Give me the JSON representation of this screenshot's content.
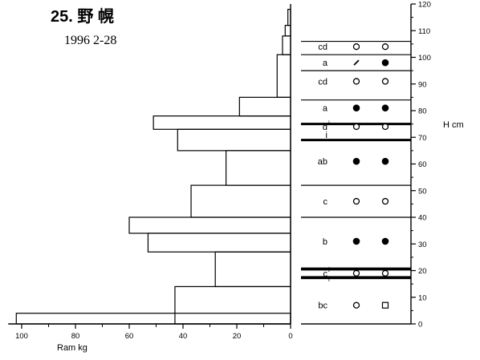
{
  "title": "25. 野 幌",
  "subtitle": "1996 2-28",
  "chart_data": [
    {
      "type": "bar",
      "orientation": "horizontal",
      "xlabel": "Ram kg",
      "xlim": [
        0,
        105
      ],
      "x_direction": "right-to-left",
      "xticks": [
        "100",
        "80",
        "60",
        "40",
        "20",
        "0"
      ],
      "ylabel": "H cm",
      "ylim": [
        0,
        120
      ],
      "bars": [
        {
          "from": 0,
          "to": 14,
          "value": 43
        },
        {
          "from": 14,
          "to": 27,
          "value": 28
        },
        {
          "from": 27,
          "to": 34,
          "value": 53
        },
        {
          "from": 34,
          "to": 40,
          "value": 60
        },
        {
          "from": 40,
          "to": 52,
          "value": 37
        },
        {
          "from": 52,
          "to": 65,
          "value": 24
        },
        {
          "from": 65,
          "to": 73,
          "value": 42
        },
        {
          "from": 73,
          "to": 78,
          "value": 51
        },
        {
          "from": 78,
          "to": 85,
          "value": 19
        },
        {
          "from": 85,
          "to": 101,
          "value": 5
        },
        {
          "from": 101,
          "to": 108,
          "value": 3
        },
        {
          "from": 108,
          "to": 112,
          "value": 2
        },
        {
          "from": 112,
          "to": 118,
          "value": 1
        },
        {
          "from": 118,
          "to": 120,
          "value": 0
        },
        {
          "from": 0,
          "to": 4,
          "value": 102
        }
      ]
    },
    {
      "type": "table",
      "yticks": [
        "0",
        "10",
        "20",
        "30",
        "40",
        "50",
        "60",
        "70",
        "80",
        "90",
        "100",
        "110",
        "120"
      ],
      "ylabel": "H cm",
      "layer_boundaries_cm": [
        0,
        17,
        21,
        40,
        52,
        69,
        75,
        84,
        95,
        101,
        106
      ],
      "ice_crusts_cm": [
        17.5,
        20.5,
        69,
        75
      ],
      "layers": [
        {
          "y": 7,
          "label": "bc",
          "sup": "",
          "sym1": "open-circle",
          "sym2": "open-square"
        },
        {
          "y": 19,
          "label": "c",
          "sup": "i",
          "sub": "i",
          "sym1": "open-circle",
          "sym2": "open-circle"
        },
        {
          "y": 31,
          "label": "b",
          "sup": "",
          "sym1": "filled-circle",
          "sym2": "filled-circle"
        },
        {
          "y": 46,
          "label": "c",
          "sup": "",
          "sym1": "open-circle",
          "sym2": "open-circle"
        },
        {
          "y": 61,
          "label": "ab",
          "sup": "",
          "sym1": "filled-circle",
          "sym2": "filled-circle"
        },
        {
          "y": 71,
          "label": "i",
          "sup": "",
          "sym1": "",
          "sym2": ""
        },
        {
          "y": 74,
          "label": "d",
          "sup": "i",
          "sym1": "open-circle",
          "sym2": "open-circle"
        },
        {
          "y": 81,
          "label": "a",
          "sup": "",
          "sym1": "filled-circle",
          "sym2": "filled-circle"
        },
        {
          "y": 91,
          "label": "cd",
          "sup": "",
          "sym1": "open-circle",
          "sym2": "open-circle"
        },
        {
          "y": 98,
          "label": "a",
          "sup": "",
          "sym1": "slash",
          "sym2": "filled-circle"
        },
        {
          "y": 104,
          "label": "cd",
          "sup": "",
          "sym1": "open-circle",
          "sym2": "open-circle"
        }
      ]
    }
  ]
}
